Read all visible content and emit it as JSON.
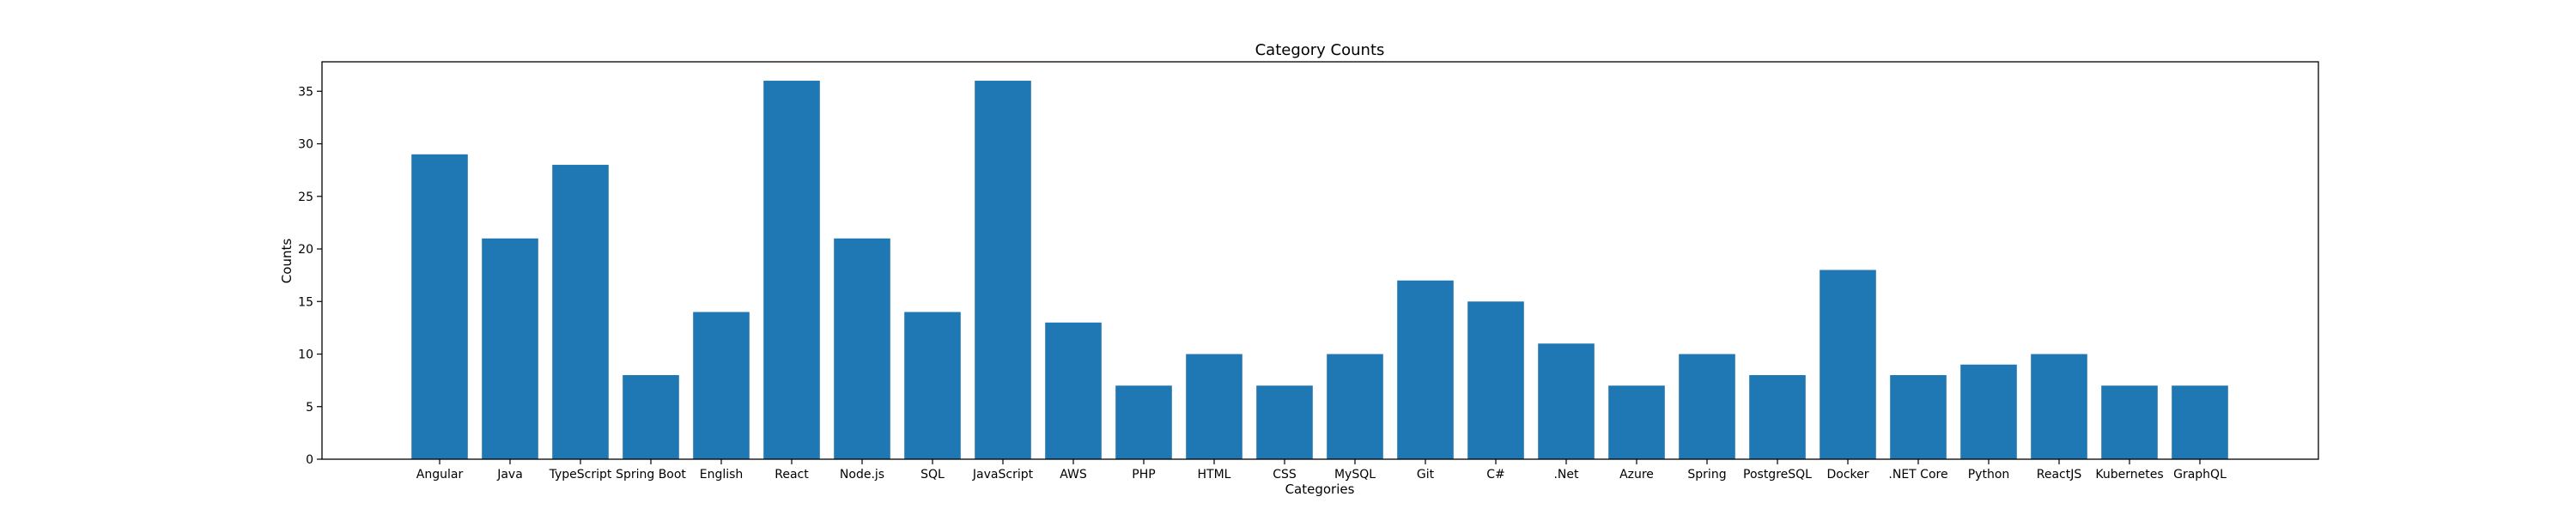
{
  "chart_data": {
    "type": "bar",
    "title": "Category Counts",
    "xlabel": "Categories",
    "ylabel": "Counts",
    "categories": [
      "Angular",
      "Java",
      "TypeScript",
      "Spring Boot",
      "English",
      "React",
      "Node.js",
      "SQL",
      "JavaScript",
      "AWS",
      "PHP",
      "HTML",
      "CSS",
      "MySQL",
      "Git",
      "C#",
      ".Net",
      "Azure",
      "Spring",
      "PostgreSQL",
      "Docker",
      ".NET Core",
      "Python",
      "ReactJS",
      "Kubernetes",
      "GraphQL"
    ],
    "values": [
      29,
      21,
      28,
      8,
      14,
      36,
      21,
      14,
      36,
      13,
      7,
      10,
      7,
      10,
      17,
      15,
      11,
      7,
      10,
      8,
      18,
      8,
      9,
      10,
      7,
      7
    ],
    "ylim": [
      0,
      37.8
    ],
    "yticks": [
      0,
      5,
      10,
      15,
      20,
      25,
      30,
      35
    ],
    "grid": false,
    "bar_color": "#1f77b4"
  }
}
